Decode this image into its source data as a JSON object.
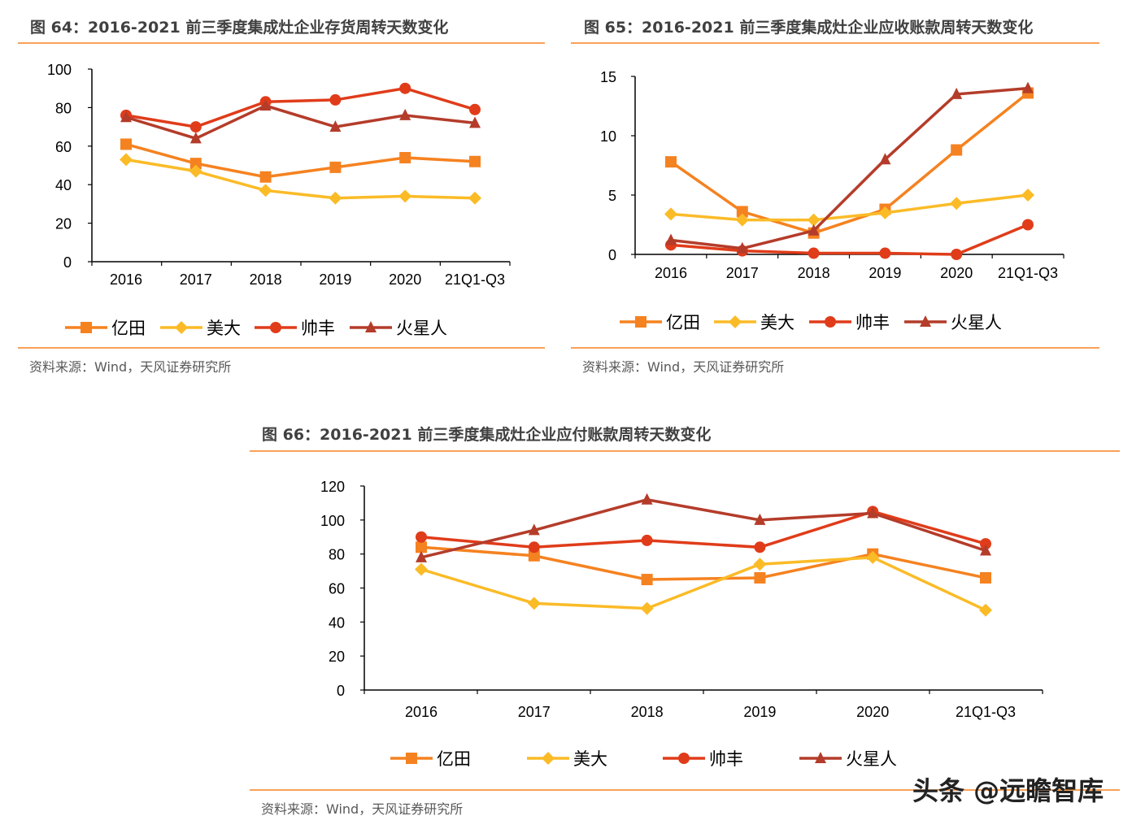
{
  "series_colors": {
    "亿田": "#F58220",
    "美大": "#FBBB27",
    "帅丰": "#E03C1A",
    "火星人": "#B43C2A"
  },
  "series_markers": {
    "亿田": "square",
    "美大": "diamond",
    "帅丰": "circle",
    "火星人": "triangle"
  },
  "watermark": "头条 @远瞻智库",
  "chart_data": [
    {
      "type": "line",
      "title": "图 64：2016-2021 前三季度集成灶企业存货周转天数变化",
      "source": "资料来源：Wind，天风证券研究所",
      "categories": [
        "2016",
        "2017",
        "2018",
        "2019",
        "2020",
        "21Q1-Q3"
      ],
      "ylim": [
        0,
        100
      ],
      "yticks": [
        "0",
        "20",
        "40",
        "60",
        "80",
        "100"
      ],
      "legend_position": "bottom",
      "grid": false,
      "series": [
        {
          "name": "亿田",
          "values": [
            61,
            51,
            44,
            49,
            54,
            52
          ]
        },
        {
          "name": "美大",
          "values": [
            53,
            47,
            37,
            33,
            34,
            33
          ]
        },
        {
          "name": "帅丰",
          "values": [
            76,
            70,
            83,
            84,
            90,
            79
          ]
        },
        {
          "name": "火星人",
          "values": [
            75,
            64,
            81,
            70,
            76,
            72
          ]
        }
      ]
    },
    {
      "type": "line",
      "title": "图 65：2016-2021 前三季度集成灶企业应收账款周转天数变化",
      "source": "资料来源：Wind，天风证券研究所",
      "categories": [
        "2016",
        "2017",
        "2018",
        "2019",
        "2020",
        "21Q1-Q3"
      ],
      "ylim": [
        0,
        15
      ],
      "yticks": [
        "0",
        "5",
        "10",
        "15"
      ],
      "legend_position": "bottom",
      "grid": false,
      "series": [
        {
          "name": "亿田",
          "values": [
            7.8,
            3.6,
            1.8,
            3.8,
            8.8,
            13.6
          ]
        },
        {
          "name": "美大",
          "values": [
            3.4,
            2.9,
            2.9,
            3.5,
            4.3,
            5.0
          ]
        },
        {
          "name": "帅丰",
          "values": [
            0.8,
            0.3,
            0.1,
            0.1,
            0.0,
            2.5
          ]
        },
        {
          "name": "火星人",
          "values": [
            1.2,
            0.5,
            2.0,
            8.0,
            13.5,
            14.0
          ]
        }
      ]
    },
    {
      "type": "line",
      "title": "图 66：2016-2021 前三季度集成灶企业应付账款周转天数变化",
      "source": "资料来源：Wind，天风证券研究所",
      "categories": [
        "2016",
        "2017",
        "2018",
        "2019",
        "2020",
        "21Q1-Q3"
      ],
      "ylim": [
        0,
        120
      ],
      "yticks": [
        "0",
        "20",
        "40",
        "60",
        "80",
        "100",
        "120"
      ],
      "legend_position": "bottom",
      "grid": false,
      "series": [
        {
          "name": "亿田",
          "values": [
            84,
            79,
            65,
            66,
            80,
            66
          ]
        },
        {
          "name": "美大",
          "values": [
            71,
            51,
            48,
            74,
            78,
            47
          ]
        },
        {
          "name": "帅丰",
          "values": [
            90,
            84,
            88,
            84,
            105,
            86
          ]
        },
        {
          "name": "火星人",
          "values": [
            78,
            94,
            112,
            100,
            104,
            82
          ]
        }
      ]
    }
  ]
}
